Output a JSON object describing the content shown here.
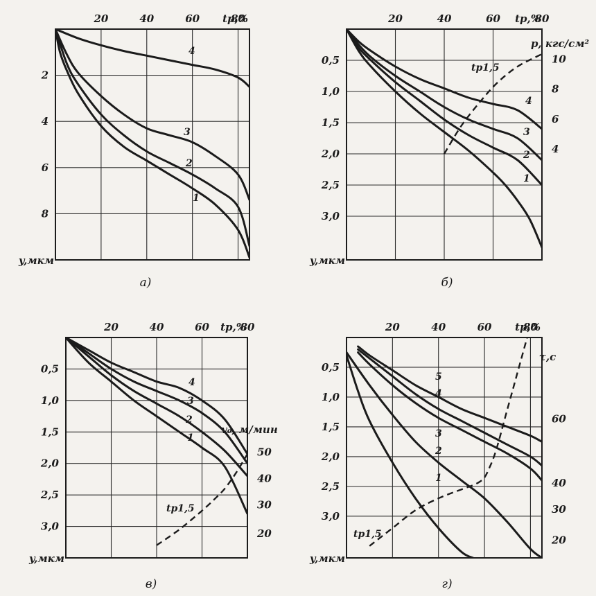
{
  "chart_data": [
    {
      "id": "a",
      "type": "line",
      "panel_label": "а)",
      "xlabel": "tр,%",
      "ylabel": "y,мкм",
      "x_ticks": [
        "20",
        "40",
        "60",
        "80"
      ],
      "y_ticks": [
        "2",
        "4",
        "6",
        "8"
      ],
      "xlim": [
        0,
        85
      ],
      "ylim": [
        0,
        10
      ],
      "y_inverted": true,
      "series": [
        {
          "name": "1",
          "x": [
            0,
            2,
            5,
            10,
            20,
            30,
            40,
            50,
            60,
            70,
            80,
            85
          ],
          "y": [
            0,
            1.0,
            1.8,
            2.8,
            4.2,
            5.1,
            5.7,
            6.3,
            6.9,
            7.6,
            8.7,
            9.9
          ]
        },
        {
          "name": "2",
          "x": [
            0,
            5,
            10,
            20,
            30,
            40,
            50,
            60,
            70,
            80,
            85
          ],
          "y": [
            0,
            1.5,
            2.4,
            3.7,
            4.6,
            5.3,
            5.8,
            6.3,
            6.9,
            7.7,
            9.4
          ]
        },
        {
          "name": "3",
          "x": [
            0,
            5,
            10,
            20,
            30,
            40,
            50,
            60,
            70,
            80,
            85
          ],
          "y": [
            0,
            1.1,
            1.9,
            2.9,
            3.7,
            4.3,
            4.6,
            4.9,
            5.5,
            6.3,
            7.4
          ]
        },
        {
          "name": "4",
          "x": [
            0,
            10,
            20,
            30,
            40,
            50,
            60,
            70,
            80,
            85
          ],
          "y": [
            0,
            0.4,
            0.7,
            0.95,
            1.15,
            1.35,
            1.55,
            1.75,
            2.1,
            2.5
          ]
        }
      ]
    },
    {
      "id": "b",
      "type": "line",
      "panel_label": "б)",
      "xlabel": "tр,%",
      "ylabel": "y,мкм",
      "right_label": "p, кгс/см²",
      "x_ticks": [
        "20",
        "40",
        "60",
        "80"
      ],
      "y_ticks": [
        "0,5",
        "1,0",
        "1,5",
        "2,0",
        "2,5",
        "3,0"
      ],
      "right_ticks": [
        "10",
        "8",
        "6",
        "4"
      ],
      "xlim": [
        0,
        80
      ],
      "ylim": [
        0,
        3.7
      ],
      "y_inverted": true,
      "series": [
        {
          "name": "1",
          "x": [
            0,
            5,
            10,
            20,
            30,
            40,
            50,
            60,
            65,
            70,
            75,
            80
          ],
          "y": [
            0,
            0.35,
            0.6,
            1.0,
            1.35,
            1.65,
            1.95,
            2.3,
            2.5,
            2.75,
            3.05,
            3.5
          ]
        },
        {
          "name": "2",
          "x": [
            0,
            5,
            10,
            20,
            30,
            40,
            50,
            60,
            70,
            80
          ],
          "y": [
            0,
            0.3,
            0.5,
            0.85,
            1.15,
            1.45,
            1.7,
            1.9,
            2.1,
            2.5
          ]
        },
        {
          "name": "3",
          "x": [
            0,
            5,
            10,
            20,
            30,
            40,
            50,
            60,
            70,
            80
          ],
          "y": [
            0,
            0.25,
            0.45,
            0.75,
            1.0,
            1.25,
            1.45,
            1.6,
            1.75,
            2.1
          ]
        },
        {
          "name": "4",
          "x": [
            0,
            5,
            10,
            20,
            30,
            40,
            50,
            60,
            70,
            80
          ],
          "y": [
            0,
            0.2,
            0.35,
            0.6,
            0.8,
            0.95,
            1.1,
            1.2,
            1.3,
            1.6
          ]
        },
        {
          "name": "tр1,5",
          "dashed": true,
          "x": [
            40,
            47,
            55,
            62,
            70,
            80
          ],
          "y": [
            2.0,
            1.55,
            1.15,
            0.85,
            0.6,
            0.4
          ]
        }
      ]
    },
    {
      "id": "c",
      "type": "line",
      "panel_label": "в)",
      "xlabel": "tр,%",
      "ylabel": "y,мкм",
      "right_label": "v₀, м/мин",
      "x_ticks": [
        "20",
        "40",
        "60",
        "80"
      ],
      "y_ticks": [
        "0,5",
        "1,0",
        "1,5",
        "2,0",
        "2,5",
        "3,0"
      ],
      "right_ticks": [
        "50",
        "40",
        "30",
        "20"
      ],
      "xlim": [
        0,
        80
      ],
      "ylim": [
        0,
        3.5
      ],
      "y_inverted": true,
      "series": [
        {
          "name": "1",
          "x": [
            0,
            10,
            20,
            30,
            40,
            50,
            60,
            70,
            80
          ],
          "y": [
            0,
            0.4,
            0.7,
            1.0,
            1.25,
            1.5,
            1.75,
            2.05,
            2.8
          ]
        },
        {
          "name": "2",
          "x": [
            0,
            10,
            20,
            30,
            40,
            50,
            60,
            70,
            80
          ],
          "y": [
            0,
            0.3,
            0.6,
            0.85,
            1.05,
            1.25,
            1.5,
            1.8,
            2.2
          ]
        },
        {
          "name": "3",
          "x": [
            0,
            10,
            20,
            30,
            40,
            50,
            60,
            70,
            80
          ],
          "y": [
            0,
            0.25,
            0.5,
            0.7,
            0.85,
            1.0,
            1.2,
            1.5,
            2.0
          ]
        },
        {
          "name": "4",
          "x": [
            0,
            10,
            20,
            30,
            40,
            50,
            60,
            70,
            80
          ],
          "y": [
            0,
            0.2,
            0.4,
            0.55,
            0.7,
            0.8,
            1.0,
            1.3,
            1.85
          ]
        },
        {
          "name": "tр1,5",
          "dashed": true,
          "x": [
            40,
            50,
            60,
            66,
            70,
            75,
            80
          ],
          "y": [
            3.3,
            3.05,
            2.75,
            2.55,
            2.4,
            2.15,
            1.85
          ]
        }
      ]
    },
    {
      "id": "d",
      "type": "line",
      "panel_label": "г)",
      "xlabel": "tр,%",
      "ylabel": "y,мкм",
      "right_label": "τ,с",
      "x_ticks": [
        "20",
        "40",
        "60",
        "80"
      ],
      "y_ticks": [
        "0,5",
        "1,0",
        "1,5",
        "2,0",
        "2,5",
        "3,0"
      ],
      "right_ticks": [
        "60",
        "40",
        "30",
        "20"
      ],
      "xlim": [
        0,
        85
      ],
      "ylim": [
        0,
        3.7
      ],
      "y_inverted": true,
      "series": [
        {
          "name": "1",
          "x": [
            0,
            5,
            10,
            20,
            30,
            40,
            50,
            55
          ],
          "y": [
            0.3,
            0.9,
            1.4,
            2.1,
            2.7,
            3.2,
            3.6,
            3.7
          ]
        },
        {
          "name": "2",
          "x": [
            0,
            10,
            20,
            30,
            40,
            50,
            60,
            70,
            80,
            85
          ],
          "y": [
            0.25,
            0.8,
            1.3,
            1.75,
            2.1,
            2.4,
            2.7,
            3.1,
            3.55,
            3.7
          ]
        },
        {
          "name": "3",
          "x": [
            5,
            10,
            20,
            30,
            40,
            50,
            60,
            70,
            80,
            85
          ],
          "y": [
            0.25,
            0.45,
            0.8,
            1.1,
            1.35,
            1.55,
            1.75,
            1.95,
            2.2,
            2.4
          ]
        },
        {
          "name": "4",
          "x": [
            5,
            10,
            20,
            30,
            40,
            50,
            60,
            70,
            80,
            85
          ],
          "y": [
            0.2,
            0.35,
            0.65,
            0.95,
            1.2,
            1.4,
            1.6,
            1.8,
            2.0,
            2.15
          ]
        },
        {
          "name": "5",
          "x": [
            5,
            10,
            20,
            30,
            40,
            50,
            60,
            70,
            80,
            85
          ],
          "y": [
            0.15,
            0.3,
            0.55,
            0.8,
            1.0,
            1.2,
            1.35,
            1.5,
            1.65,
            1.75
          ]
        },
        {
          "name": "tр1,5",
          "dashed": true,
          "x": [
            10,
            20,
            30,
            40,
            50,
            55,
            58,
            60,
            62,
            65,
            70,
            75,
            80
          ],
          "y": [
            3.5,
            3.2,
            2.9,
            2.7,
            2.55,
            2.48,
            2.42,
            2.35,
            2.2,
            1.9,
            1.2,
            0.5,
            -0.2
          ]
        }
      ]
    }
  ]
}
